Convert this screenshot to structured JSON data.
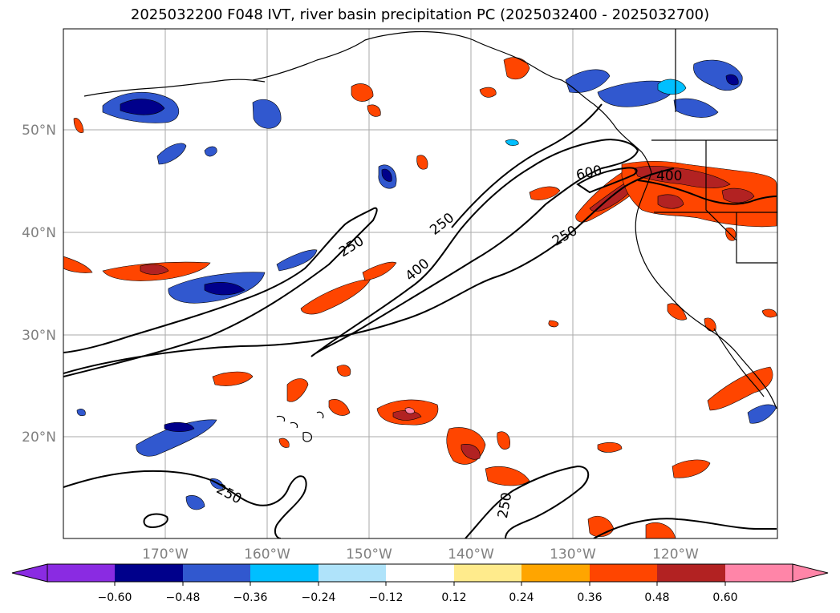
{
  "title": "2025032200 F048 IVT, river basin precipitation PC (2025032400 - 2025032700)",
  "map": {
    "lat_labels": [
      "50°N",
      "40°N",
      "30°N",
      "20°N"
    ],
    "lon_labels": [
      "170°W",
      "160°W",
      "150°W",
      "140°W",
      "130°W",
      "120°W"
    ],
    "contour_labels": [
      "250",
      "400",
      "600",
      "400",
      "250",
      "250",
      "250",
      "250"
    ],
    "gridlines": true,
    "grid_color": "#aaaaaa",
    "contour_color": "#000000",
    "coastline_color": "#000000"
  },
  "colorbar": {
    "ticks": [
      "−0.60",
      "−0.48",
      "−0.36",
      "−0.24",
      "−0.12",
      "0.12",
      "0.24",
      "0.36",
      "0.48",
      "0.60"
    ],
    "colors": [
      "#8a2be2",
      "#00008b",
      "#3158cf",
      "#00bfff",
      "#afe3fa",
      "#ffffff",
      "#ffeb8c",
      "#ffa500",
      "#ff4500",
      "#b22222",
      "#ff85a8"
    ],
    "extend": "both"
  },
  "chart_data": {
    "type": "heatmap",
    "title": "2025032200 F048 IVT, river basin precipitation PC (2025032400 - 2025032700)",
    "xlabel": "",
    "ylabel": "",
    "x_ticks": [
      "170°W",
      "160°W",
      "150°W",
      "140°W",
      "130°W",
      "120°W"
    ],
    "y_ticks": [
      "50°N",
      "40°N",
      "30°N",
      "20°N"
    ],
    "x_range_deg": [
      -180,
      -110.5
    ],
    "y_range_deg": [
      10,
      59.8
    ],
    "ivt_contour_levels": [
      250,
      400,
      600
    ],
    "colorbar_levels": [
      -0.6,
      -0.48,
      -0.36,
      -0.24,
      -0.12,
      0.12,
      0.24,
      0.36,
      0.48,
      0.6
    ],
    "colorbar_extend": "both"
  }
}
